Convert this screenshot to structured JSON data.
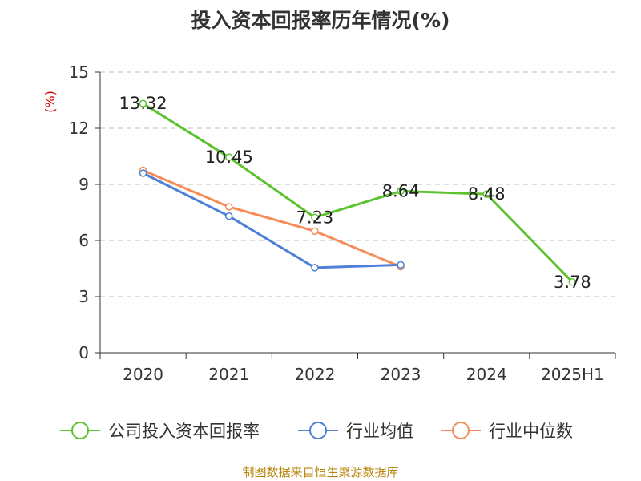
{
  "chart_data": {
    "type": "line",
    "title": "投入资本回报率历年情况(%)",
    "ylabel": "(%)",
    "xlabel": "",
    "categories": [
      "2020",
      "2021",
      "2022",
      "2023",
      "2024",
      "2025H1"
    ],
    "ylim": [
      0,
      15
    ],
    "yticks": [
      0,
      3,
      6,
      9,
      12,
      15
    ],
    "grid": true,
    "legend_position": "bottom",
    "series": [
      {
        "name": "公司投入资本回报率",
        "color": "#5cc22d",
        "values": [
          13.32,
          10.45,
          7.23,
          8.64,
          8.48,
          3.78
        ],
        "labels": [
          "13.32",
          "10.45",
          "7.23",
          "8.64",
          "8.48",
          "3.78"
        ]
      },
      {
        "name": "行业均值",
        "color": "#4f81d9",
        "values": [
          9.6,
          7.3,
          4.55,
          4.7,
          null,
          null
        ]
      },
      {
        "name": "行业中位数",
        "color": "#f58d5a",
        "values": [
          9.75,
          7.8,
          6.5,
          4.6,
          null,
          null
        ]
      }
    ]
  },
  "source": "制图数据来自恒生聚源数据库"
}
